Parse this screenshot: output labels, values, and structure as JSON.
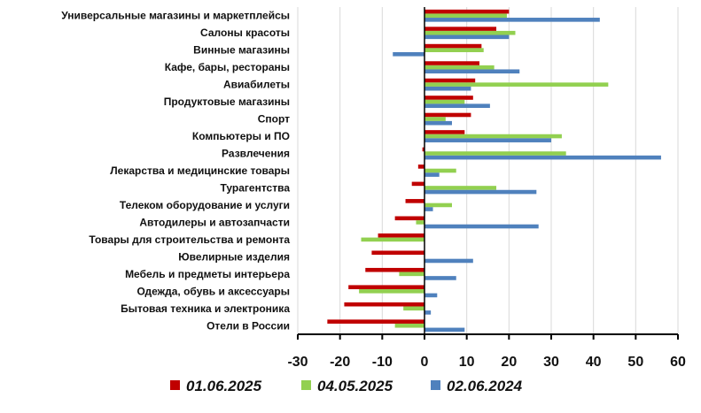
{
  "chart_data": {
    "type": "bar",
    "orientation": "horizontal",
    "title": "",
    "xlabel": "",
    "ylabel": "",
    "xlim": [
      -30,
      60
    ],
    "xticks": [
      -30,
      -20,
      -10,
      0,
      10,
      20,
      30,
      40,
      50,
      60
    ],
    "grid": "vertical",
    "legend_position": "bottom",
    "categories": [
      "Универсальные магазины и маркетплейсы",
      "Салоны красоты",
      "Винные магазины",
      "Кафе, бары, рестораны",
      "Авиабилеты",
      "Продуктовые магазины",
      "Спорт",
      "Компьютеры и ПО",
      "Развлечения",
      "Лекарства и медицинские товары",
      "Турагентства",
      "Телеком оборудование и услуги",
      "Автодилеры и автозапчасти",
      "Товары для строительства и ремонта",
      "Ювелирные изделия",
      "Мебель и предметы интерьера",
      "Одежда, обувь и аксессуары",
      "Бытовая техника и электроника",
      "Отели в России"
    ],
    "series": [
      {
        "name": "01.06.2025",
        "color": "#c00000",
        "values": [
          20,
          17,
          13.5,
          13,
          12,
          11.5,
          11,
          9.5,
          -0.5,
          -1.5,
          -3,
          -4.5,
          -7,
          -11,
          -12.5,
          -14,
          -18,
          -19,
          -23
        ]
      },
      {
        "name": "04.05.2025",
        "color": "#92d050",
        "values": [
          19.5,
          21.5,
          14,
          16.5,
          43.5,
          9.5,
          5,
          32.5,
          33.5,
          7.5,
          17,
          6.5,
          -2,
          -15,
          0,
          -6,
          -15.5,
          -5,
          -7
        ]
      },
      {
        "name": "02.06.2024",
        "color": "#4f81bd",
        "values": [
          41.5,
          20,
          -7.5,
          22.5,
          11,
          15.5,
          6.5,
          30,
          56,
          3.5,
          26.5,
          2,
          27,
          0,
          11.5,
          7.5,
          3,
          1.5,
          9.5
        ]
      }
    ]
  }
}
